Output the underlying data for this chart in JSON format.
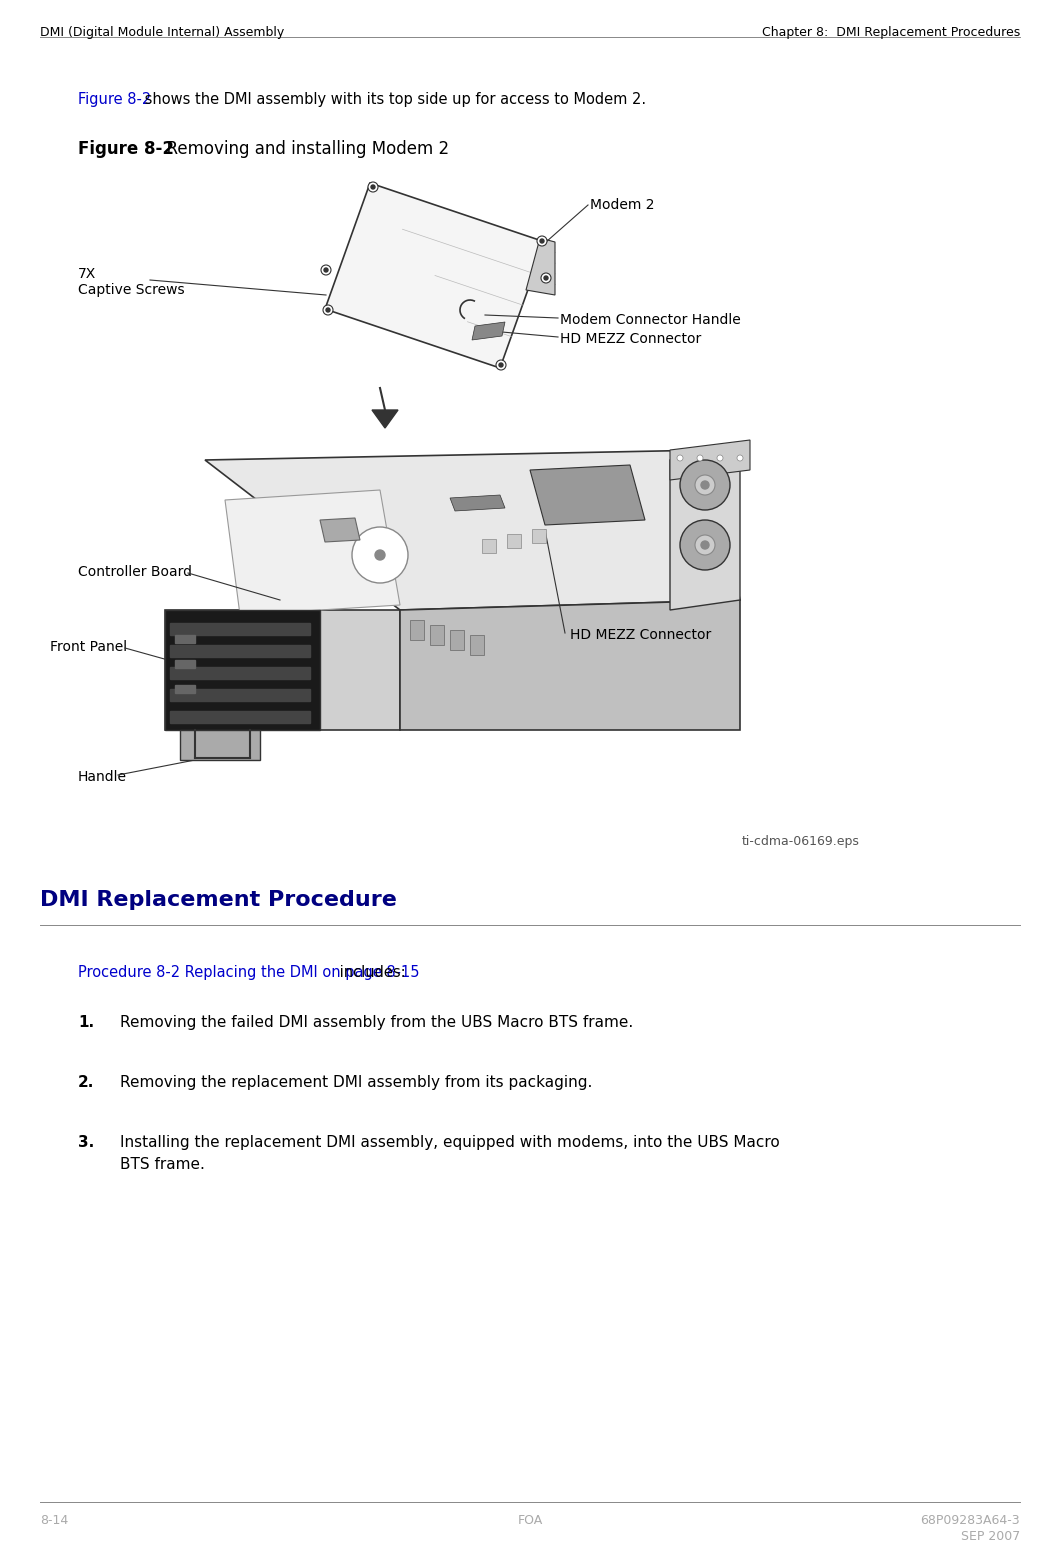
{
  "header_left": "DMI (Digital Module Internal) Assembly",
  "header_right": "Chapter 8:  DMI Replacement Procedures",
  "intro_link": "Figure 8-2",
  "intro_text": " shows the DMI assembly with its top side up for access to Modem 2.",
  "figure_label_bold": "Figure 8-2",
  "figure_label_text": "  Removing and installing Modem 2",
  "figure_filename": "ti-cdma-06169.eps",
  "labels": {
    "modem2": "Modem 2",
    "captive_screws": "7X\nCaptive Screws",
    "modem_connector_handle": "Modem Connector Handle",
    "hd_mezz_top": "HD MEZZ Connector",
    "controller_board": "Controller Board",
    "front_panel": "Front Panel",
    "hd_mezz_bottom": "HD MEZZ Connector",
    "handle": "Handle"
  },
  "section_title": "DMI Replacement Procedure",
  "proc_link": "Procedure 8-2 Replacing the DMI on page 8-15",
  "proc_text": " includes:",
  "steps": [
    "Removing the failed DMI assembly from the UBS Macro BTS frame.",
    "Removing the replacement DMI assembly from its packaging.",
    "Installing the replacement DMI assembly, equipped with modems, into the UBS Macro\nBTS frame."
  ],
  "footer_left": "8-14",
  "footer_center": "FOA",
  "footer_right_top": "68P09283A64-3",
  "footer_right_bottom": "SEP 2007",
  "link_color": "#0000CC",
  "section_title_color": "#000080",
  "text_color": "#000000",
  "header_color": "#000000",
  "footer_gray": "#aaaaaa",
  "bg_color": "#ffffff",
  "line_color": "#000000",
  "diagram_line": "#333333"
}
